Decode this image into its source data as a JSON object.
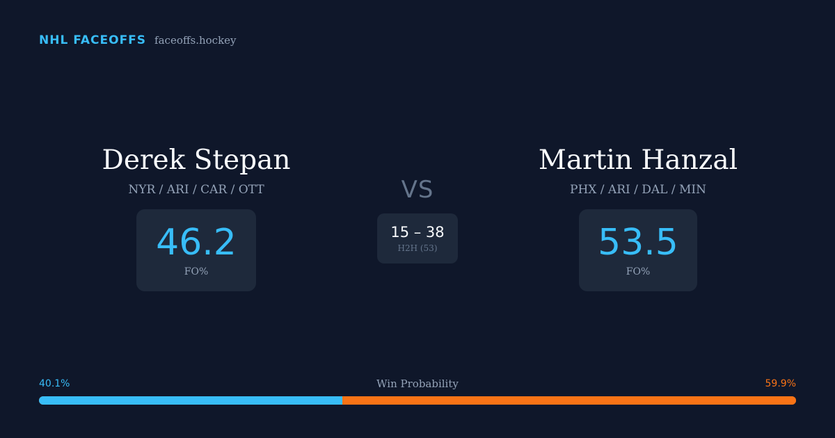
{
  "brand": {
    "name": "NHL FACEOFFS",
    "url": "faceoffs.hockey"
  },
  "player_left": {
    "name": "Derek Stepan",
    "teams": "NYR / ARI / CAR / OTT",
    "stat_value": "46.2",
    "stat_label": "FO%"
  },
  "player_right": {
    "name": "Martin Hanzal",
    "teams": "PHX / ARI / DAL / MIN",
    "stat_value": "53.5",
    "stat_label": "FO%"
  },
  "matchup": {
    "vs": "VS",
    "h2h_score": "15 – 38",
    "h2h_label": "H2H (53)"
  },
  "win_probability": {
    "title": "Win Probability",
    "left_label": "40.1%",
    "right_label": "59.9%",
    "left_fraction": 0.401,
    "colors": {
      "left": "#38bdf8",
      "right": "#f97316"
    }
  }
}
